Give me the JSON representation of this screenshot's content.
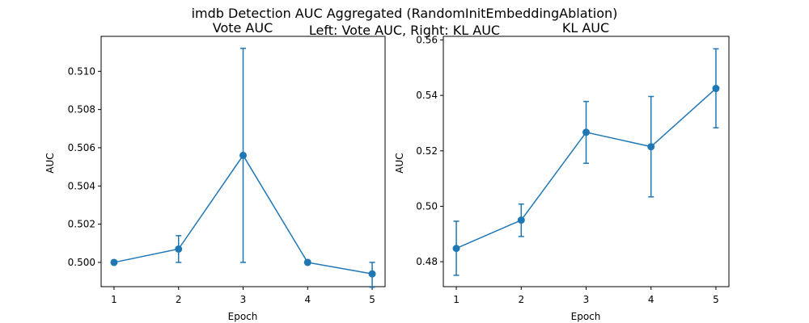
{
  "figure": {
    "title_line1": "imdb Detection AUC Aggregated (RandomInitEmbeddingAblation)",
    "title_line2": "Left: Vote AUC, Right: KL AUC"
  },
  "colors": {
    "series": "#1f77b4",
    "axes": "#000000",
    "background": "#ffffff"
  },
  "chart_data": [
    {
      "type": "line",
      "title": "Vote AUC",
      "xlabel": "Epoch",
      "ylabel": "AUC",
      "grid": false,
      "x": [
        1,
        2,
        3,
        4,
        5
      ],
      "xticks": [
        1,
        2,
        3,
        4,
        5
      ],
      "xlim": [
        0.8,
        5.2
      ],
      "yticks": [
        0.5,
        0.502,
        0.504,
        0.506,
        0.508,
        0.51
      ],
      "ytick_labels": [
        "0.500",
        "0.502",
        "0.504",
        "0.506",
        "0.508",
        "0.510"
      ],
      "ylim": [
        0.49873,
        0.51183
      ],
      "series": [
        {
          "values": [
            0.5,
            0.5007,
            0.5056,
            0.5,
            0.4994
          ],
          "err_low": [
            0.5,
            0.5,
            0.5,
            0.5,
            0.4987
          ],
          "err_high": [
            0.5,
            0.5014,
            0.5112,
            0.5,
            0.5
          ],
          "marker": "circle"
        }
      ]
    },
    {
      "type": "line",
      "title": "KL AUC",
      "xlabel": "Epoch",
      "ylabel": "AUC",
      "grid": false,
      "x": [
        1,
        2,
        3,
        4,
        5
      ],
      "xticks": [
        1,
        2,
        3,
        4,
        5
      ],
      "xlim": [
        0.8,
        5.2
      ],
      "yticks": [
        0.48,
        0.5,
        0.52,
        0.54,
        0.56
      ],
      "ytick_labels": [
        "0.48",
        "0.50",
        "0.52",
        "0.54",
        "0.56"
      ],
      "ylim": [
        0.471,
        0.5613
      ],
      "series": [
        {
          "values": [
            0.4848,
            0.495,
            0.5267,
            0.5215,
            0.5425
          ],
          "err_low": [
            0.4751,
            0.4891,
            0.5155,
            0.5034,
            0.5283
          ],
          "err_high": [
            0.4946,
            0.5008,
            0.5378,
            0.5396,
            0.5568
          ],
          "marker": "circle"
        }
      ]
    }
  ]
}
